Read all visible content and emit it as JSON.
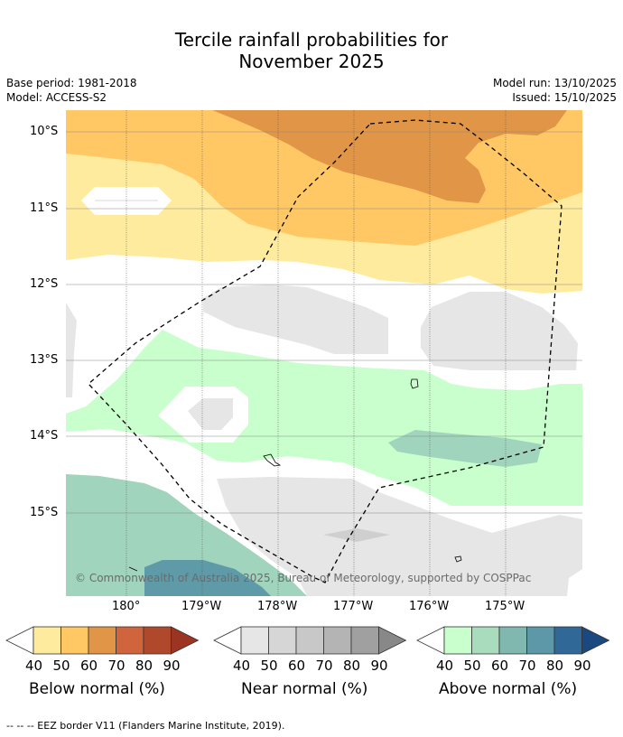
{
  "title": {
    "line1": "Tercile rainfall probabilities for",
    "line2": "November 2025"
  },
  "meta": {
    "base_period": "Base period: 1981-2018",
    "model": "Model: ACCESS-S2",
    "model_run": "Model run: 13/10/2025",
    "issued": "Issued: 15/10/2025"
  },
  "map": {
    "lat_labels": [
      "10°S",
      "11°S",
      "12°S",
      "13°S",
      "14°S",
      "15°S"
    ],
    "lon_labels": [
      "180°",
      "179°W",
      "178°W",
      "177°W",
      "176°W",
      "175°W"
    ],
    "copyright": "© Commonwealth of Australia 2025, Bureau of Meteorology, supported by COSPPac",
    "colors": {
      "below_40": "#ffeb9e",
      "below_50": "#ffc864",
      "below_60": "#e09646",
      "near_40": "#e6e6e6",
      "above_40": "#c8ffcc",
      "above_50": "#a0d4bc",
      "above_60": "#7fb8b0",
      "above_70": "#5e9aa8",
      "grid": "#999999",
      "border": "#000000"
    }
  },
  "colorbars": [
    {
      "label": "Below normal (%)",
      "ticks": [
        "40",
        "50",
        "60",
        "70",
        "80",
        "90"
      ],
      "colors": [
        "#ffeb9e",
        "#ffc864",
        "#e09646",
        "#d0643c",
        "#b0482c",
        "#9c3424"
      ]
    },
    {
      "label": "Near normal (%)",
      "ticks": [
        "40",
        "50",
        "60",
        "70",
        "80",
        "90"
      ],
      "colors": [
        "#e6e6e6",
        "#d6d6d6",
        "#c8c8c8",
        "#b4b4b4",
        "#a0a0a0",
        "#888888"
      ]
    },
    {
      "label": "Above normal (%)",
      "ticks": [
        "40",
        "50",
        "60",
        "70",
        "80",
        "90"
      ],
      "colors": [
        "#c8ffcc",
        "#a8dcbc",
        "#80b8b0",
        "#5c98a8",
        "#306898",
        "#1a4880"
      ]
    }
  ],
  "footer": "--  --  -- EEZ border V11 (Flanders Marine Institute, 2019)."
}
